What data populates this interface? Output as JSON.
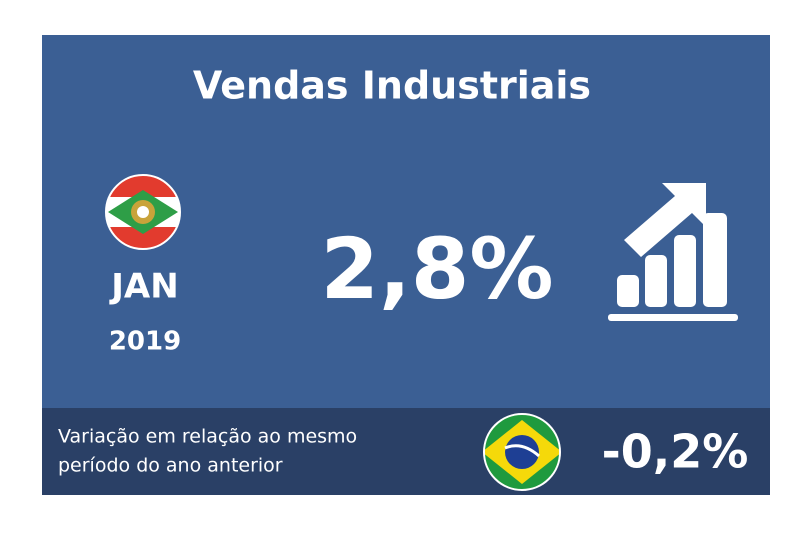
{
  "card": {
    "title": "Vendas Industriais",
    "month": "JAN",
    "year": "2019",
    "value": "2,8%",
    "footer": {
      "lines": [
        "Variação em relação ao mesmo",
        "período do ano anterior"
      ],
      "brazil_value": "-0,2%"
    }
  }
}
